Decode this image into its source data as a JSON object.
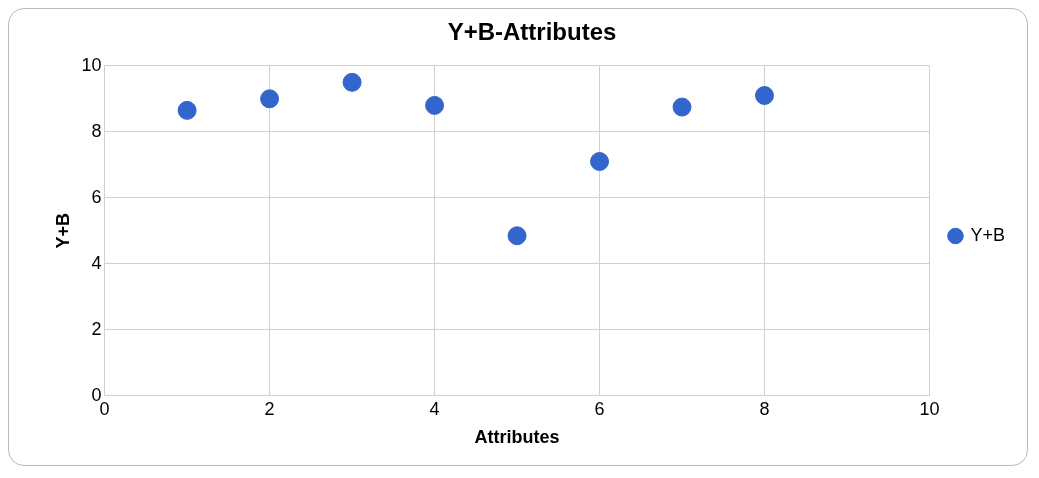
{
  "chart_data": {
    "type": "scatter",
    "title": "Y+B-Attributes",
    "xlabel": "Attributes",
    "ylabel": "Y+B",
    "x": [
      1,
      2,
      3,
      4,
      5,
      6,
      7,
      8
    ],
    "series": [
      {
        "name": "Y+B",
        "color": "#3366cc",
        "values": [
          8.65,
          9.0,
          9.5,
          8.8,
          4.85,
          7.1,
          8.75,
          9.1
        ]
      }
    ],
    "xlim": [
      0,
      10
    ],
    "xticks": [
      0,
      2,
      4,
      6,
      8,
      10
    ],
    "ylim": [
      0,
      10
    ],
    "yticks": [
      0,
      2,
      4,
      6,
      8,
      10
    ],
    "grid": true,
    "legend": "right",
    "marker": "circle"
  }
}
